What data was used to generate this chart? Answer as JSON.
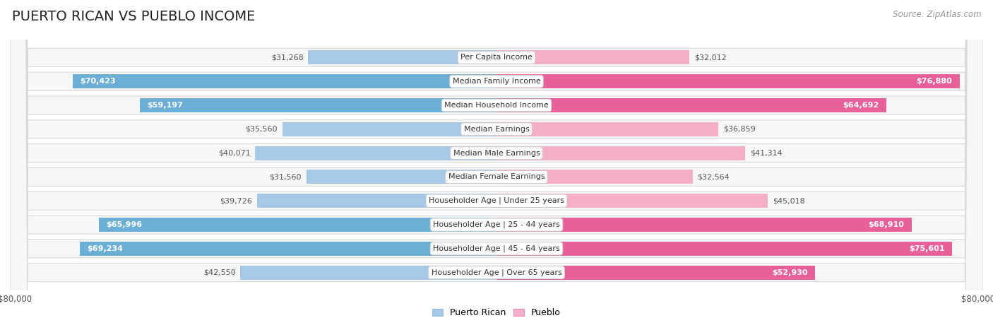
{
  "title": "PUERTO RICAN VS PUEBLO INCOME",
  "source": "Source: ZipAtlas.com",
  "categories": [
    "Per Capita Income",
    "Median Family Income",
    "Median Household Income",
    "Median Earnings",
    "Median Male Earnings",
    "Median Female Earnings",
    "Householder Age | Under 25 years",
    "Householder Age | 25 - 44 years",
    "Householder Age | 45 - 64 years",
    "Householder Age | Over 65 years"
  ],
  "puerto_rican_values": [
    31268,
    70423,
    59197,
    35560,
    40071,
    31560,
    39726,
    65996,
    69234,
    42550
  ],
  "pueblo_values": [
    32012,
    76880,
    64692,
    36859,
    41314,
    32564,
    45018,
    68910,
    75601,
    52930
  ],
  "puerto_rican_labels": [
    "$31,268",
    "$70,423",
    "$59,197",
    "$35,560",
    "$40,071",
    "$31,560",
    "$39,726",
    "$65,996",
    "$69,234",
    "$42,550"
  ],
  "pueblo_labels": [
    "$32,012",
    "$76,880",
    "$64,692",
    "$36,859",
    "$41,314",
    "$32,564",
    "$45,018",
    "$68,910",
    "$75,601",
    "$52,930"
  ],
  "max_value": 80000,
  "pr_color_light": "#a8c8e8",
  "pr_color_dark": "#6baed6",
  "pb_color_light": "#f4aec8",
  "pb_color_dark": "#e8609a",
  "inside_label_threshold": 48000,
  "row_bg_color": "#f0f0f0",
  "row_border_color": "#d8d8d8",
  "fig_bg": "#ffffff",
  "title_fontsize": 14,
  "label_fontsize": 8,
  "category_fontsize": 8,
  "legend_fontsize": 9,
  "source_fontsize": 8.5
}
